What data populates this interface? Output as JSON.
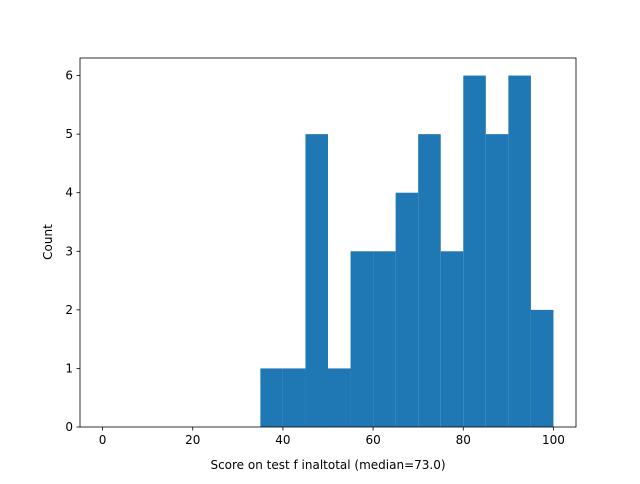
{
  "chart_data": {
    "type": "bar",
    "subtype": "histogram",
    "xlabel": "Score on test f inaltotal (median=73.0)",
    "ylabel": "Count",
    "xlim": [
      -5,
      105
    ],
    "ylim": [
      0,
      6.3
    ],
    "xticks": [
      0,
      20,
      40,
      60,
      80,
      100
    ],
    "yticks": [
      0,
      1,
      2,
      3,
      4,
      5,
      6
    ],
    "bin_edges": [
      35,
      40,
      45,
      50,
      55,
      60,
      65,
      70,
      75,
      80,
      85,
      90,
      95,
      100
    ],
    "counts": [
      1,
      1,
      5,
      1,
      3,
      3,
      4,
      5,
      3,
      6,
      5,
      6,
      2
    ],
    "bar_color": "#1f77b4",
    "grid": false,
    "legend": "none"
  }
}
